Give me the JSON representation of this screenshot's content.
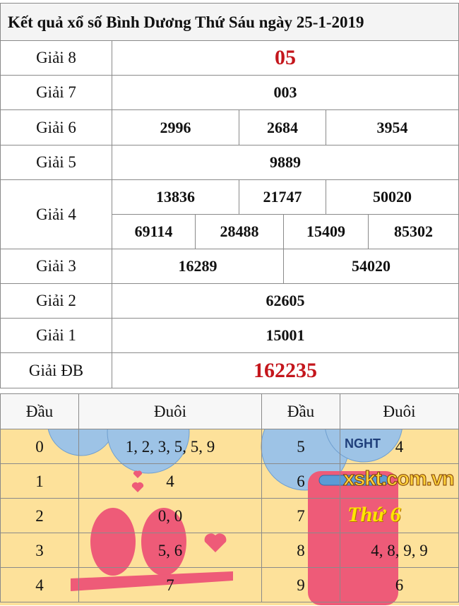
{
  "title": "Kết quả xổ số Bình Dương Thứ Sáu ngày 25-1-2019",
  "prizes": {
    "g8": {
      "label": "Giải 8",
      "values": [
        "05"
      ]
    },
    "g7": {
      "label": "Giải 7",
      "values": [
        "003"
      ]
    },
    "g6": {
      "label": "Giải 6",
      "values": [
        "2996",
        "2684",
        "3954"
      ]
    },
    "g5": {
      "label": "Giải 5",
      "values": [
        "9889"
      ]
    },
    "g4": {
      "label": "Giải 4",
      "values": [
        "13836",
        "21747",
        "50020",
        "69114",
        "28488",
        "15409",
        "85302"
      ]
    },
    "g3": {
      "label": "Giải 3",
      "values": [
        "16289",
        "54020"
      ]
    },
    "g2": {
      "label": "Giải 2",
      "values": [
        "62605"
      ]
    },
    "g1": {
      "label": "Giải 1",
      "values": [
        "15001"
      ]
    },
    "db": {
      "label": "Giải ĐB",
      "values": [
        "162235"
      ]
    }
  },
  "loto": {
    "headers": [
      "Đầu",
      "Đuôi",
      "Đầu",
      "Đuôi"
    ],
    "left": [
      {
        "head": "0",
        "tail": "1, 2, 3, 5, 5, 9"
      },
      {
        "head": "1",
        "tail": "4"
      },
      {
        "head": "2",
        "tail": "0, 0"
      },
      {
        "head": "3",
        "tail": "5, 6"
      },
      {
        "head": "4",
        "tail": "7"
      }
    ],
    "right": [
      {
        "head": "5",
        "tail": "4"
      },
      {
        "head": "6",
        "tail": ""
      },
      {
        "head": "7",
        "tail": ""
      },
      {
        "head": "8",
        "tail": "4, 8, 9, 9"
      },
      {
        "head": "9",
        "tail": "6"
      }
    ]
  },
  "decor": {
    "badge_text": "Thứ 6",
    "watermark": "xskt.com.vn",
    "cloud_text": "NGHT"
  },
  "colors": {
    "special": "#c4161c",
    "background": "#fde19a",
    "bird": "#ee5b78"
  }
}
